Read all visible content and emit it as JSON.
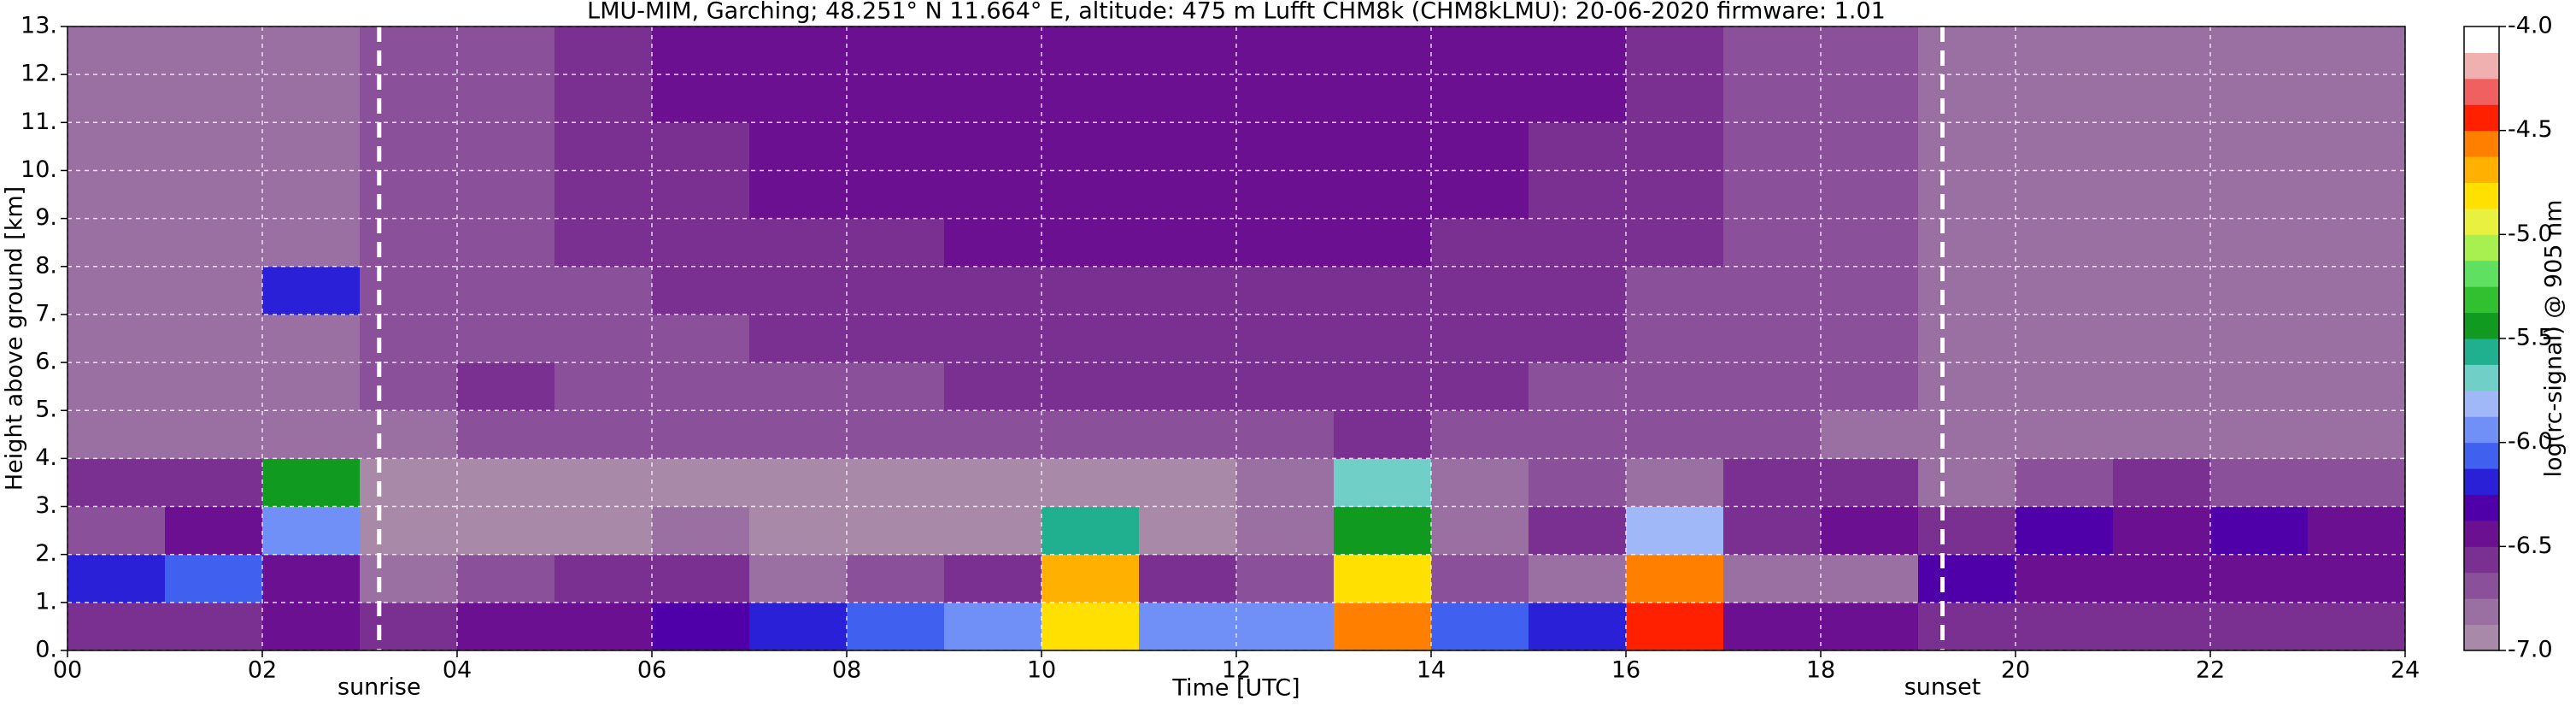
{
  "chart_data": {
    "type": "heatmap",
    "title": "LMU-MIM, Garching; 48.251° N 11.664° E, altitude: 475 m    Lufft CHM8k (CHM8kLMU): 20-06-2020    firmware: 1.01",
    "x_label": "Time [UTC]",
    "y_label": "Height above ground [km]",
    "colorbar_label": "log(rc-signal) @ 905 nm",
    "x": [
      0,
      1,
      2,
      3,
      4,
      5,
      6,
      7,
      8,
      9,
      10,
      11,
      12,
      13,
      14,
      15,
      16,
      17,
      18,
      19,
      20,
      21,
      22,
      23,
      24
    ],
    "y": [
      0,
      1,
      2,
      3,
      4,
      5,
      6,
      7,
      8,
      9,
      10,
      11,
      12,
      13
    ],
    "z": [
      [
        -6.6,
        -6.6,
        -6.5,
        -6.6,
        -6.4,
        -6.4,
        -6.3,
        -6.2,
        -6.1,
        -6.0,
        -4.8,
        -6.0,
        -6.0,
        -4.6,
        -6.1,
        -6.2,
        -4.4,
        -6.4,
        -6.5,
        -6.6,
        -6.6,
        -6.6,
        -6.6,
        -6.6
      ],
      [
        -6.2,
        -6.1,
        -6.4,
        -6.8,
        -6.7,
        -6.6,
        -6.6,
        -6.8,
        -6.7,
        -6.6,
        -4.7,
        -6.6,
        -6.7,
        -4.8,
        -6.7,
        -6.8,
        -4.6,
        -6.8,
        -6.8,
        -6.3,
        -6.4,
        -6.5,
        -6.5,
        -6.5
      ],
      [
        -6.7,
        -6.5,
        -6.0,
        -6.9,
        -6.9,
        -6.9,
        -6.8,
        -6.9,
        -6.9,
        -6.9,
        -5.6,
        -6.9,
        -6.8,
        -5.5,
        -6.8,
        -6.6,
        -5.8,
        -6.6,
        -6.5,
        -6.6,
        -6.3,
        -6.4,
        -6.3,
        -6.4
      ],
      [
        -6.6,
        -6.6,
        -5.5,
        -6.9,
        -6.9,
        -6.9,
        -6.9,
        -6.9,
        -6.9,
        -6.9,
        -6.9,
        -6.9,
        -6.8,
        -5.7,
        -6.8,
        -6.7,
        -6.8,
        -6.6,
        -6.6,
        -6.8,
        -6.7,
        -6.6,
        -6.7,
        -6.7
      ],
      [
        -6.8,
        -6.8,
        -6.8,
        -6.8,
        -6.7,
        -6.7,
        -6.7,
        -6.7,
        -6.7,
        -6.7,
        -6.7,
        -6.7,
        -6.7,
        -6.6,
        -6.7,
        -6.7,
        -6.7,
        -6.7,
        -6.8,
        -6.8,
        -6.8,
        -6.8,
        -6.8,
        -6.8
      ],
      [
        -6.8,
        -6.8,
        -6.8,
        -6.7,
        -6.6,
        -6.7,
        -6.7,
        -6.7,
        -6.7,
        -6.6,
        -6.6,
        -6.6,
        -6.6,
        -6.6,
        -6.6,
        -6.7,
        -6.7,
        -6.7,
        -6.7,
        -6.8,
        -6.8,
        -6.8,
        -6.8,
        -6.8
      ],
      [
        -6.8,
        -6.8,
        -6.8,
        -6.7,
        -6.7,
        -6.7,
        -6.7,
        -6.6,
        -6.6,
        -6.6,
        -6.6,
        -6.6,
        -6.6,
        -6.6,
        -6.6,
        -6.6,
        -6.7,
        -6.7,
        -6.7,
        -6.8,
        -6.8,
        -6.8,
        -6.8,
        -6.8
      ],
      [
        -6.8,
        -6.8,
        -6.2,
        -6.7,
        -6.7,
        -6.7,
        -6.6,
        -6.6,
        -6.6,
        -6.6,
        -6.6,
        -6.6,
        -6.6,
        -6.6,
        -6.6,
        -6.6,
        -6.7,
        -6.7,
        -6.7,
        -6.8,
        -6.8,
        -6.8,
        -6.8,
        -6.8
      ],
      [
        -6.8,
        -6.8,
        -6.8,
        -6.7,
        -6.7,
        -6.6,
        -6.6,
        -6.6,
        -6.6,
        -6.5,
        -6.5,
        -6.5,
        -6.5,
        -6.5,
        -6.6,
        -6.6,
        -6.6,
        -6.7,
        -6.7,
        -6.8,
        -6.8,
        -6.8,
        -6.8,
        -6.8
      ],
      [
        -6.8,
        -6.8,
        -6.8,
        -6.7,
        -6.7,
        -6.6,
        -6.6,
        -6.5,
        -6.5,
        -6.5,
        -6.5,
        -6.5,
        -6.5,
        -6.5,
        -6.5,
        -6.6,
        -6.6,
        -6.7,
        -6.7,
        -6.8,
        -6.8,
        -6.8,
        -6.8,
        -6.8
      ],
      [
        -6.8,
        -6.8,
        -6.8,
        -6.7,
        -6.7,
        -6.6,
        -6.6,
        -6.5,
        -6.5,
        -6.5,
        -6.4,
        -6.4,
        -6.4,
        -6.4,
        -6.5,
        -6.6,
        -6.6,
        -6.7,
        -6.7,
        -6.8,
        -6.8,
        -6.8,
        -6.8,
        -6.8
      ],
      [
        -6.8,
        -6.8,
        -6.8,
        -6.7,
        -6.7,
        -6.6,
        -6.5,
        -6.5,
        -6.4,
        -6.4,
        -6.4,
        -6.4,
        -6.4,
        -6.4,
        -6.5,
        -6.5,
        -6.6,
        -6.7,
        -6.7,
        -6.8,
        -6.8,
        -6.8,
        -6.8,
        -6.8
      ],
      [
        -6.8,
        -6.8,
        -6.8,
        -6.7,
        -6.7,
        -6.6,
        -6.5,
        -6.5,
        -6.4,
        -6.4,
        -6.4,
        -6.4,
        -6.4,
        -6.4,
        -6.5,
        -6.5,
        -6.6,
        -6.7,
        -6.7,
        -6.8,
        -6.8,
        -6.8,
        -6.8,
        -6.8
      ]
    ],
    "xlim": [
      0,
      24
    ],
    "xticks": [
      {
        "value": 0,
        "label": "00"
      },
      {
        "value": 2,
        "label": "02"
      },
      {
        "value": 4,
        "label": "04"
      },
      {
        "value": 6,
        "label": "06"
      },
      {
        "value": 8,
        "label": "08"
      },
      {
        "value": 10,
        "label": "10"
      },
      {
        "value": 12,
        "label": "12"
      },
      {
        "value": 14,
        "label": "14"
      },
      {
        "value": 16,
        "label": "16"
      },
      {
        "value": 18,
        "label": "18"
      },
      {
        "value": 20,
        "label": "20"
      },
      {
        "value": 22,
        "label": "22"
      },
      {
        "value": 24,
        "label": "24"
      }
    ],
    "ylim": [
      0,
      13
    ],
    "yticks": [
      {
        "value": 0,
        "label": "0."
      },
      {
        "value": 1,
        "label": "1."
      },
      {
        "value": 2,
        "label": "2."
      },
      {
        "value": 3,
        "label": "3."
      },
      {
        "value": 4,
        "label": "4."
      },
      {
        "value": 5,
        "label": "5."
      },
      {
        "value": 6,
        "label": "6."
      },
      {
        "value": 7,
        "label": "7."
      },
      {
        "value": 8,
        "label": "8."
      },
      {
        "value": 9,
        "label": "9."
      },
      {
        "value": 10,
        "label": "10."
      },
      {
        "value": 11,
        "label": "11."
      },
      {
        "value": 12,
        "label": "12."
      },
      {
        "value": 13,
        "label": "13."
      }
    ],
    "clim": [
      -7,
      -4
    ],
    "cticks": [
      {
        "value": -4,
        "label": "-4.0"
      },
      {
        "value": -4.5,
        "label": "-4.5"
      },
      {
        "value": -5,
        "label": "-5.0"
      },
      {
        "value": -5.5,
        "label": "-5.5"
      },
      {
        "value": -6,
        "label": "-6.0"
      },
      {
        "value": -6.5,
        "label": "-6.5"
      },
      {
        "value": -7,
        "label": "-7.0"
      }
    ],
    "colorscale": [
      "#a88aa8",
      "#9a70a2",
      "#8a509a",
      "#7a3090",
      "#6a1090",
      "#5000a8",
      "#2a20d8",
      "#4060f0",
      "#7090f8",
      "#a0b8f8",
      "#70d0c8",
      "#20b090",
      "#109a20",
      "#30c030",
      "#60e060",
      "#a8f050",
      "#e8f040",
      "#ffe000",
      "#ffb000",
      "#ff8000",
      "#ff2000",
      "#f06060",
      "#f0b0b0",
      "#ffffff"
    ],
    "grid": true,
    "annotations": [
      {
        "x": 3.2,
        "text": "sunrise"
      },
      {
        "x": 19.25,
        "text": "sunset"
      }
    ]
  }
}
